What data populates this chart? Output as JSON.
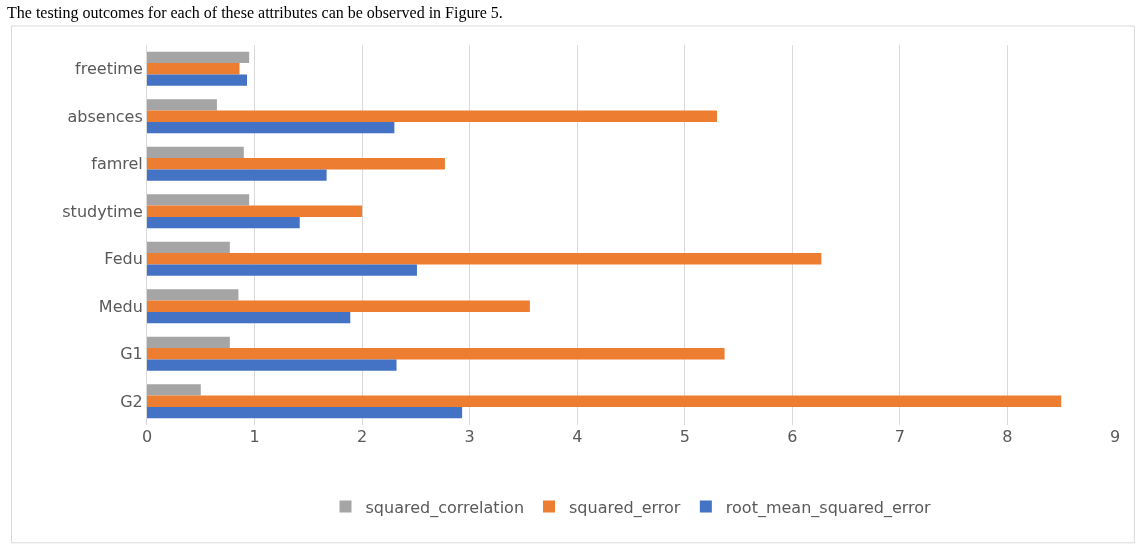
{
  "chart_data": {
    "type": "bar",
    "orientation": "horizontal",
    "categories": [
      "freetime",
      "absences",
      "famrel",
      "studytime",
      "Fedu",
      "Medu",
      "G1",
      "G2"
    ],
    "series": [
      {
        "name": "squared_correlation",
        "color": "#a5a5a5",
        "values": [
          0.95,
          0.65,
          0.9,
          0.95,
          0.77,
          0.85,
          0.77,
          0.5
        ]
      },
      {
        "name": "squared_error",
        "color": "#ed7d31",
        "values": [
          0.86,
          5.3,
          2.77,
          2.0,
          6.27,
          3.56,
          5.37,
          8.5
        ]
      },
      {
        "name": "root_mean_squared_error",
        "color": "#4472c4",
        "values": [
          0.93,
          2.3,
          1.67,
          1.42,
          2.51,
          1.89,
          2.32,
          2.93
        ]
      }
    ],
    "xlim": [
      0,
      9
    ],
    "xticks": [
      0,
      1,
      2,
      3,
      4,
      5,
      6,
      7,
      8,
      9
    ],
    "grid": "x",
    "legend": "bottom",
    "annotations": [
      "The testing outcomes for each of these attributes can be observed in Figure 5."
    ]
  }
}
